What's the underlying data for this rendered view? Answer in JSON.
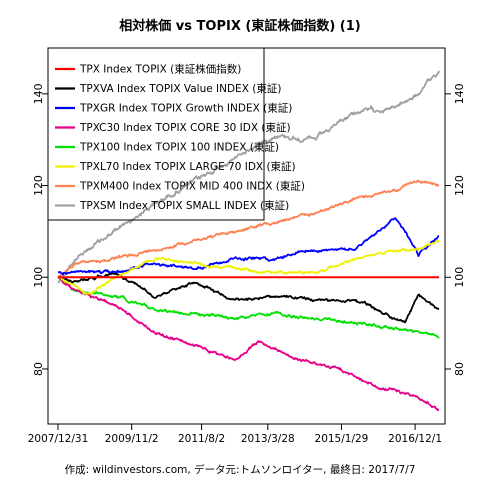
{
  "chart_data": {
    "type": "line",
    "title": "相対株価 vs TOPIX (東証株価指数) (1)",
    "caption": "作成: wildinvestors.com, データ元:トムソンロイター, 最終日: 2017/7/7",
    "x_start": "2007-12-31",
    "x_end": "2017-07-07",
    "x_ticks": [
      "2007/12/31",
      "2009/11/2",
      "2011/8/2",
      "2013/3/28",
      "2015/1/29",
      "2016/12/1"
    ],
    "x_tick_dates": [
      "2007-12-31",
      "2009-11-02",
      "2011-08-02",
      "2013-03-28",
      "2015-01-29",
      "2016-12-01"
    ],
    "y_ticks": [
      80,
      100,
      120,
      140
    ],
    "ylim": [
      68,
      150
    ],
    "legend_position": "top-left",
    "series": [
      {
        "name": "TPX Index TOPIX (東証株価指数)",
        "color": "#ff0000",
        "points": [
          [
            "2007-12-31",
            100
          ],
          [
            "2017-07-07",
            100
          ]
        ]
      },
      {
        "name": "TPXVA Index TOPIX Value INDEX (東証)",
        "color": "#000000",
        "points": [
          [
            "2007-12-31",
            100
          ],
          [
            "2008-06-01",
            99
          ],
          [
            "2009-06-01",
            101
          ],
          [
            "2010-06-01",
            96
          ],
          [
            "2011-06-01",
            99
          ],
          [
            "2012-06-01",
            95
          ],
          [
            "2013-06-01",
            96
          ],
          [
            "2014-06-01",
            95
          ],
          [
            "2015-06-01",
            95
          ],
          [
            "2016-06-01",
            91
          ],
          [
            "2016-09-01",
            90
          ],
          [
            "2017-01-01",
            96
          ],
          [
            "2017-07-07",
            93
          ]
        ]
      },
      {
        "name": "TPXGR Index TOPIX Growth INDEX (東証)",
        "color": "#0000ff",
        "points": [
          [
            "2007-12-31",
            101
          ],
          [
            "2009-06-01",
            101
          ],
          [
            "2010-06-01",
            103
          ],
          [
            "2011-06-01",
            102
          ],
          [
            "2012-06-01",
            104
          ],
          [
            "2013-06-01",
            104
          ],
          [
            "2014-06-01",
            106
          ],
          [
            "2015-06-01",
            106
          ],
          [
            "2016-06-01",
            113
          ],
          [
            "2016-09-01",
            110
          ],
          [
            "2017-01-01",
            105
          ],
          [
            "2017-07-07",
            109
          ]
        ]
      },
      {
        "name": "TPXC30 Index TOPIX CORE 30 IDX (東証)",
        "color": "#e6008a",
        "points": [
          [
            "2007-12-31",
            100
          ],
          [
            "2008-06-01",
            97
          ],
          [
            "2009-06-01",
            94
          ],
          [
            "2010-06-01",
            88
          ],
          [
            "2011-06-01",
            85
          ],
          [
            "2012-06-01",
            82
          ],
          [
            "2013-01-01",
            86
          ],
          [
            "2014-01-01",
            82
          ],
          [
            "2015-01-01",
            80
          ],
          [
            "2016-01-01",
            76
          ],
          [
            "2017-01-01",
            74
          ],
          [
            "2017-07-07",
            71
          ]
        ]
      },
      {
        "name": "TPX100 Index TOPIX 100 INDEX (東証)",
        "color": "#00e000",
        "points": [
          [
            "2007-12-31",
            100
          ],
          [
            "2008-06-01",
            97
          ],
          [
            "2009-06-01",
            96
          ],
          [
            "2010-06-01",
            93
          ],
          [
            "2011-06-01",
            92
          ],
          [
            "2012-06-01",
            91
          ],
          [
            "2013-06-01",
            92
          ],
          [
            "2014-06-01",
            91
          ],
          [
            "2015-06-01",
            90
          ],
          [
            "2016-06-01",
            89
          ],
          [
            "2017-01-01",
            88
          ],
          [
            "2017-07-07",
            87
          ]
        ]
      },
      {
        "name": "TPXL70 Index TOPIX LARGE 70 IDX (東証)",
        "color": "#f0f000",
        "points": [
          [
            "2007-12-31",
            100
          ],
          [
            "2008-10-01",
            96
          ],
          [
            "2009-06-01",
            100
          ],
          [
            "2010-06-01",
            104
          ],
          [
            "2011-06-01",
            103
          ],
          [
            "2012-06-01",
            102
          ],
          [
            "2013-06-01",
            101
          ],
          [
            "2014-06-01",
            101
          ],
          [
            "2015-06-01",
            104
          ],
          [
            "2016-06-01",
            106
          ],
          [
            "2017-01-01",
            106
          ],
          [
            "2017-07-07",
            108
          ]
        ]
      },
      {
        "name": "TPXM400 Index TOPIX MID 400 INDX (東証)",
        "color": "#ff8050",
        "points": [
          [
            "2007-12-31",
            100
          ],
          [
            "2008-06-01",
            103
          ],
          [
            "2009-06-01",
            104
          ],
          [
            "2010-06-01",
            106
          ],
          [
            "2011-06-01",
            108
          ],
          [
            "2012-06-01",
            110
          ],
          [
            "2013-06-01",
            112
          ],
          [
            "2014-06-01",
            114
          ],
          [
            "2015-06-01",
            117
          ],
          [
            "2016-06-01",
            119
          ],
          [
            "2017-01-01",
            121
          ],
          [
            "2017-07-07",
            120
          ]
        ]
      },
      {
        "name": "TPXSM Index TOPIX SMALL INDEX (東証)",
        "color": "#a0a0a0",
        "points": [
          [
            "2007-12-31",
            99
          ],
          [
            "2008-06-01",
            104
          ],
          [
            "2009-06-01",
            110
          ],
          [
            "2010-06-01",
            116
          ],
          [
            "2011-06-01",
            121
          ],
          [
            "2012-06-01",
            126
          ],
          [
            "2013-06-01",
            131
          ],
          [
            "2014-06-01",
            130
          ],
          [
            "2015-06-01",
            136
          ],
          [
            "2016-06-01",
            137
          ],
          [
            "2017-01-01",
            140
          ],
          [
            "2017-07-07",
            145
          ]
        ]
      }
    ]
  }
}
